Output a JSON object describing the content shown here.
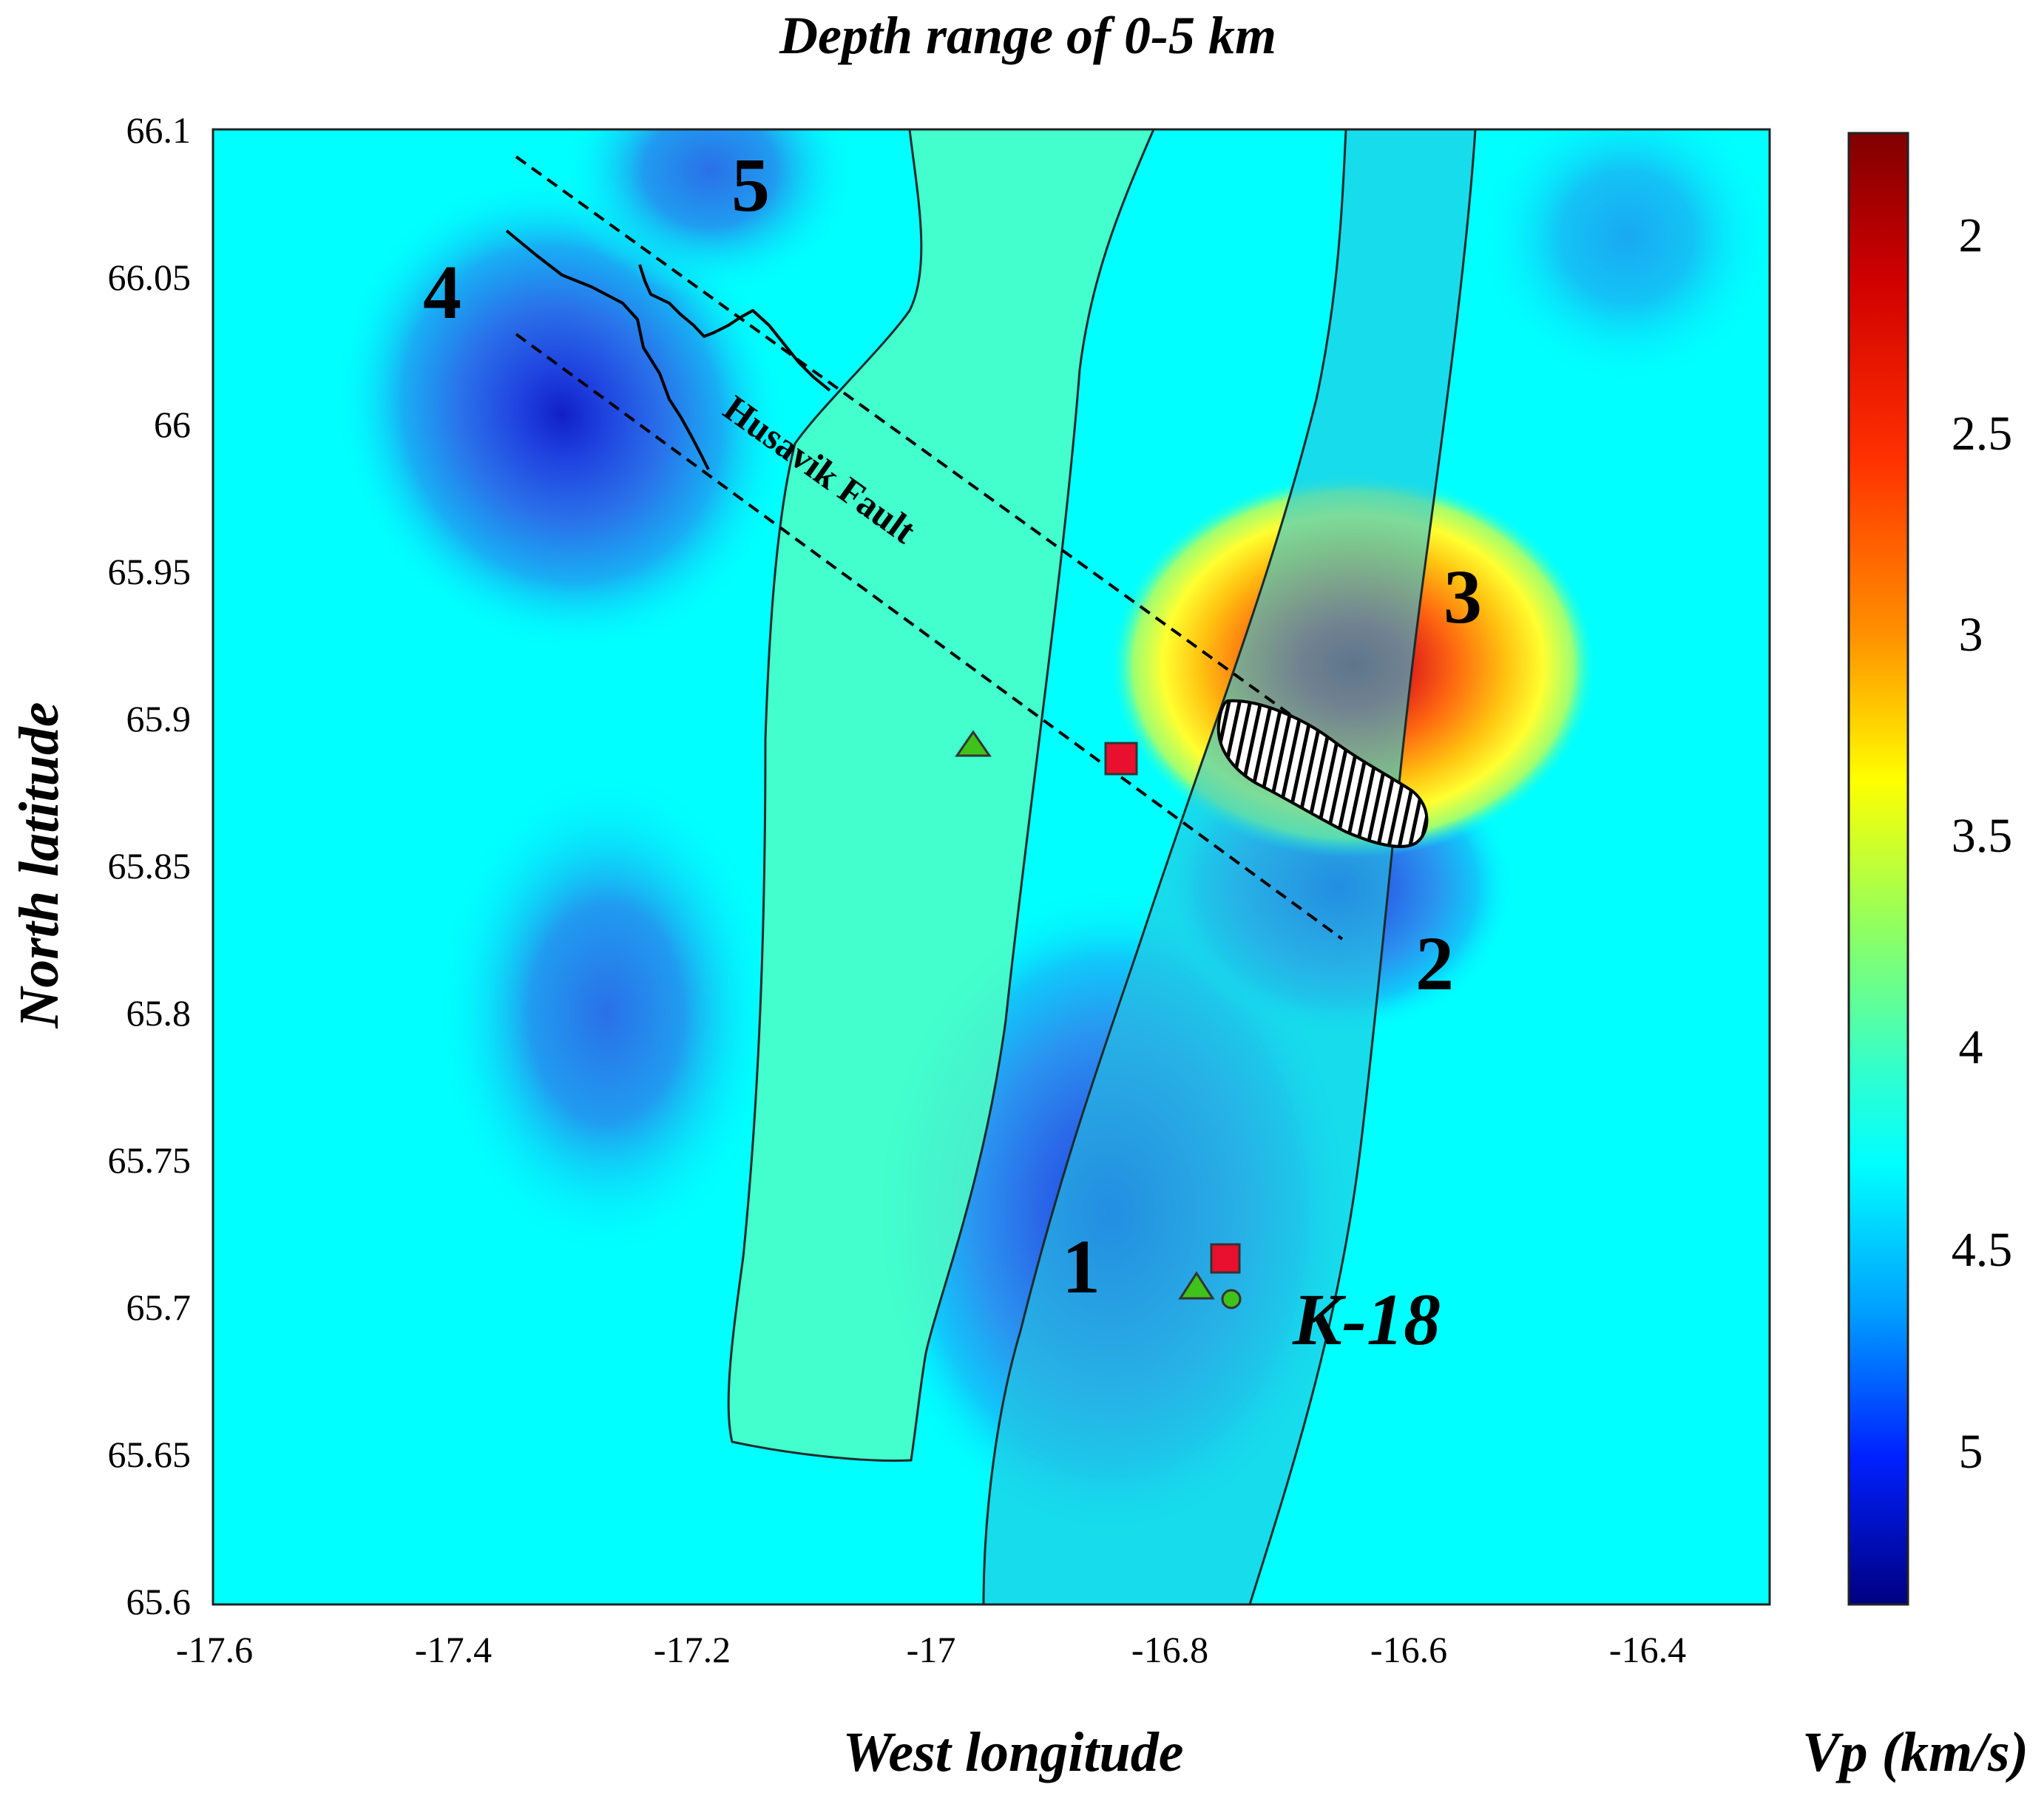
{
  "title": "Depth range of  0-5 km",
  "axes": {
    "xlabel": "West longitude",
    "ylabel": "North latitude",
    "x_ticks": [
      "-17.6",
      "-17.4",
      "-17.2",
      "-17",
      "-16.8",
      "-16.6",
      "-16.4"
    ],
    "y_ticks": [
      "66.1",
      "66.05",
      "66",
      "65.95",
      "65.9",
      "65.85",
      "65.8",
      "65.75",
      "65.7",
      "65.65",
      "65.6"
    ]
  },
  "colorbar": {
    "label": "Vp (km/s)",
    "ticks": [
      "2",
      "2.5",
      "3",
      "3.5",
      "4",
      "4.5",
      "5"
    ]
  },
  "annotations": {
    "anomaly_1": "1",
    "anomaly_2": "2",
    "anomaly_3": "3",
    "anomaly_4": "4",
    "anomaly_5": "5",
    "fault_label": "Husavik Fault",
    "zone_label": "K-18"
  },
  "colors": {
    "background": "#00ffff",
    "zone_light": "#4dffc4",
    "zone_k18": "#27c4e0",
    "hot_core": "#b80012",
    "square_marker": "#e8102e",
    "triangle_marker": "#3fc21a"
  },
  "chart_data": {
    "type": "heatmap",
    "title": "Depth range of  0-5 km",
    "xlabel": "West longitude",
    "ylabel": "North latitude",
    "xlim": [
      -17.6,
      -16.3
    ],
    "ylim": [
      65.6,
      66.1
    ],
    "colorbar_label": "Vp (km/s)",
    "colorbar_range": [
      1.6,
      5.4
    ],
    "background_value": 4.0,
    "anomalies": [
      {
        "label": "1",
        "lon": -16.87,
        "lat": 65.71,
        "vp": 4.6
      },
      {
        "label": "2",
        "lon": -16.64,
        "lat": 65.84,
        "vp": 4.7
      },
      {
        "label": "3",
        "lon": -16.67,
        "lat": 65.92,
        "vp": 1.9
      },
      {
        "label": "4",
        "lon": -17.29,
        "lat": 65.99,
        "vp": 4.8
      },
      {
        "label": "5",
        "lon": -17.16,
        "lat": 66.08,
        "vp": 4.5
      }
    ],
    "markers": [
      {
        "shape": "square",
        "lon": -16.845,
        "lat": 65.888
      },
      {
        "shape": "triangle",
        "lon": -16.965,
        "lat": 65.895
      },
      {
        "shape": "square",
        "lon": -16.76,
        "lat": 65.719
      },
      {
        "shape": "triangle",
        "lon": -16.775,
        "lat": 65.708
      },
      {
        "shape": "circle",
        "lon": -16.75,
        "lat": 65.703
      }
    ]
  }
}
